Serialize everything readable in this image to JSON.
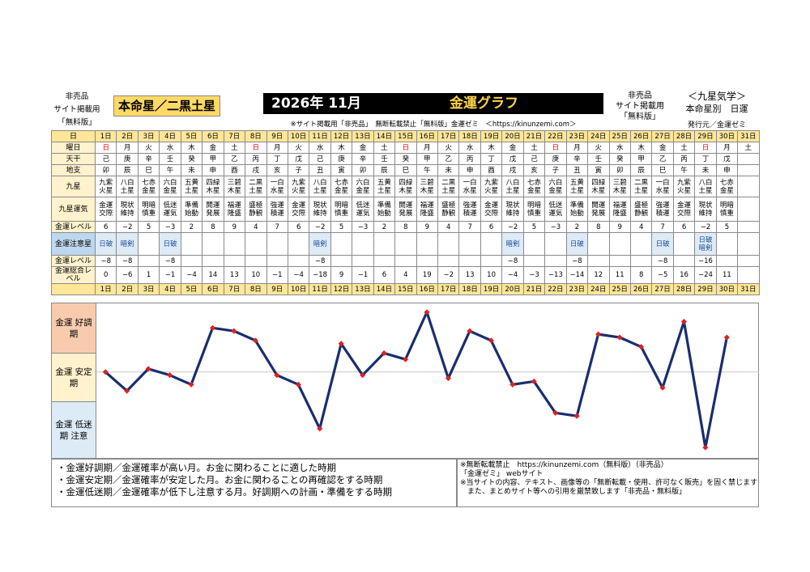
{
  "header": {
    "left_lines": [
      "非売品",
      "サイト掲載用",
      "「無料版」"
    ],
    "title": "本命星／二黒土星",
    "year_month": "2026年 11月",
    "graph_title": "金運グラフ",
    "right_lines": [
      "非売品",
      "サイト掲載用",
      "「無料版」"
    ],
    "right2_lines": [
      "＜九星気学＞",
      "本命星別　日運"
    ],
    "publisher": "発行元／金運ゼミ",
    "notice": "※サイト掲載用「非売品」　無断転載禁止「無料版」金運ゼミ　＜https://kinunzemi.com＞"
  },
  "labels": {
    "day": "日",
    "weekday": "曜日",
    "kan": "天干",
    "shi": "地支",
    "kyusei": "九星",
    "unki": "九星運気",
    "level": "金運レベル",
    "caution": "金運注意星",
    "level2": "金運レベル",
    "total": "金運総合レベル"
  },
  "days": [
    "1日",
    "2日",
    "3日",
    "4日",
    "5日",
    "6日",
    "7日",
    "8日",
    "9日",
    "10日",
    "11日",
    "12日",
    "13日",
    "14日",
    "15日",
    "16日",
    "17日",
    "18日",
    "19日",
    "20日",
    "21日",
    "22日",
    "23日",
    "24日",
    "25日",
    "26日",
    "27日",
    "28日",
    "29日",
    "30日",
    "31日"
  ],
  "weekdays": [
    "日",
    "月",
    "火",
    "水",
    "木",
    "金",
    "土",
    "日",
    "月",
    "火",
    "水",
    "木",
    "金",
    "土",
    "日",
    "月",
    "火",
    "水",
    "木",
    "金",
    "土",
    "日",
    "月",
    "火",
    "水",
    "木",
    "金",
    "土",
    "日",
    "月",
    "土"
  ],
  "kan": [
    "己",
    "庚",
    "辛",
    "壬",
    "癸",
    "甲",
    "乙",
    "丙",
    "丁",
    "戊",
    "己",
    "庚",
    "辛",
    "壬",
    "癸",
    "甲",
    "乙",
    "丙",
    "丁",
    "戊",
    "己",
    "庚",
    "辛",
    "壬",
    "癸",
    "甲",
    "乙",
    "丙",
    "丁",
    "戊",
    ""
  ],
  "shi": [
    "卯",
    "辰",
    "巳",
    "午",
    "未",
    "申",
    "酉",
    "戌",
    "亥",
    "子",
    "丑",
    "寅",
    "卯",
    "辰",
    "巳",
    "午",
    "未",
    "申",
    "酉",
    "戌",
    "亥",
    "子",
    "丑",
    "寅",
    "卯",
    "辰",
    "巳",
    "午",
    "未",
    "申",
    ""
  ],
  "kyusei": [
    "九紫 火星",
    "八白 土星",
    "七赤 金星",
    "六白 金星",
    "五黄 土星",
    "四緑 木星",
    "三碧 木星",
    "二黒 土星",
    "一白 水星",
    "九紫 火星",
    "八白 土星",
    "七赤 金星",
    "六白 金星",
    "五黄 土星",
    "四緑 木星",
    "三碧 木星",
    "二黒 土星",
    "一白 水星",
    "九紫 火星",
    "八白 土星",
    "七赤 金星",
    "六白 金星",
    "五黄 土星",
    "四緑 木星",
    "三碧 木星",
    "二黒 土星",
    "一白 水星",
    "九紫 火星",
    "八白 土星",
    "七赤 金星",
    ""
  ],
  "unki": [
    "金運 交際",
    "現状 維持",
    "明暗 慎重",
    "低迷 運気",
    "準備 始動",
    "開運 発展",
    "福運 隆盛",
    "盛極 静観",
    "強運 積運",
    "金運 交際",
    "現状 維持",
    "明暗 慎重",
    "低迷 運気",
    "準備 始動",
    "開運 発展",
    "福運 隆盛",
    "盛極 静観",
    "強運 積運",
    "金運 交際",
    "現状 維持",
    "明暗 慎重",
    "低迷 運気",
    "準備 始動",
    "開運 発展",
    "福運 隆盛",
    "盛極 静観",
    "強運 積運",
    "金運 交際",
    "現状 維持",
    "明暗 慎重",
    ""
  ],
  "level": [
    "6",
    "−2",
    "5",
    "−3",
    "2",
    "8",
    "9",
    "4",
    "7",
    "6",
    "−2",
    "5",
    "−3",
    "2",
    "8",
    "9",
    "4",
    "7",
    "6",
    "−2",
    "5",
    "−3",
    "2",
    "8",
    "9",
    "4",
    "7",
    "6",
    "−2",
    "5",
    ""
  ],
  "caution": [
    "日破",
    "暗剣",
    "",
    "日破",
    "",
    "",
    "",
    "",
    "",
    "",
    "暗剣",
    "",
    "",
    "",
    "",
    "",
    "",
    "",
    "",
    "暗剣",
    "",
    "",
    "日破",
    "",
    "",
    "",
    "日破",
    "",
    "日破 暗剣",
    "",
    ""
  ],
  "level2": [
    "−8",
    "−8",
    "",
    "−8",
    "",
    "",
    "",
    "",
    "",
    "",
    "−8",
    "",
    "",
    "",
    "",
    "",
    "",
    "",
    "",
    "−8",
    "",
    "",
    "−8",
    "",
    "",
    "",
    "−8",
    "",
    "−16",
    "",
    ""
  ],
  "total": [
    "0",
    "−6",
    "1",
    "−1",
    "−4",
    "14",
    "13",
    "10",
    "−1",
    "−4",
    "−18",
    "9",
    "−1",
    "6",
    "4",
    "19",
    "−2",
    "13",
    "10",
    "−4",
    "−3",
    "−13",
    "−14",
    "12",
    "11",
    "8",
    "−5",
    "16",
    "−24",
    "11",
    ""
  ],
  "zones": {
    "good": "金運 好調期",
    "stable": "金運 安定期",
    "low": "金運 低迷期 注意"
  },
  "footer_left": [
    "・金運好調期／金運確率が高い月。お金に関わることに適した時期",
    "・金運安定期／金運確率が安定した月。お金に関わることの再確認をする時期",
    "・金運低迷期／金運確率が低下し注意する月。好調期への計画・準備をする時期"
  ],
  "footer_right": [
    "※無断転載禁止　https://kinunzemi.com（無料版）（非売品）",
    "「金運ゼミ」 webサイト",
    "※当サイトの内容、テキスト、画像等の「無断転載・使用、許可なく販売」を固く禁じます",
    "　また、まとめサイト等への引用を厳禁致します「非売品・無料版」"
  ],
  "chart_data": {
    "type": "line",
    "x": [
      "1日",
      "2日",
      "3日",
      "4日",
      "5日",
      "6日",
      "7日",
      "8日",
      "9日",
      "10日",
      "11日",
      "12日",
      "13日",
      "14日",
      "15日",
      "16日",
      "17日",
      "18日",
      "19日",
      "20日",
      "21日",
      "22日",
      "23日",
      "24日",
      "25日",
      "26日",
      "27日",
      "28日",
      "29日",
      "30日"
    ],
    "series": [
      {
        "values": [
          0,
          -6,
          1,
          -1,
          -4,
          14,
          13,
          10,
          -1,
          -4,
          -18,
          9,
          -1,
          6,
          4,
          19,
          -2,
          13,
          10,
          -4,
          -3,
          -13,
          -14,
          12,
          11,
          8,
          -5,
          16,
          -24,
          11
        ]
      }
    ],
    "ylim": [
      -25,
      20
    ],
    "line_color": "#1a2e6e",
    "marker_color": "#e02020",
    "grid": false
  }
}
